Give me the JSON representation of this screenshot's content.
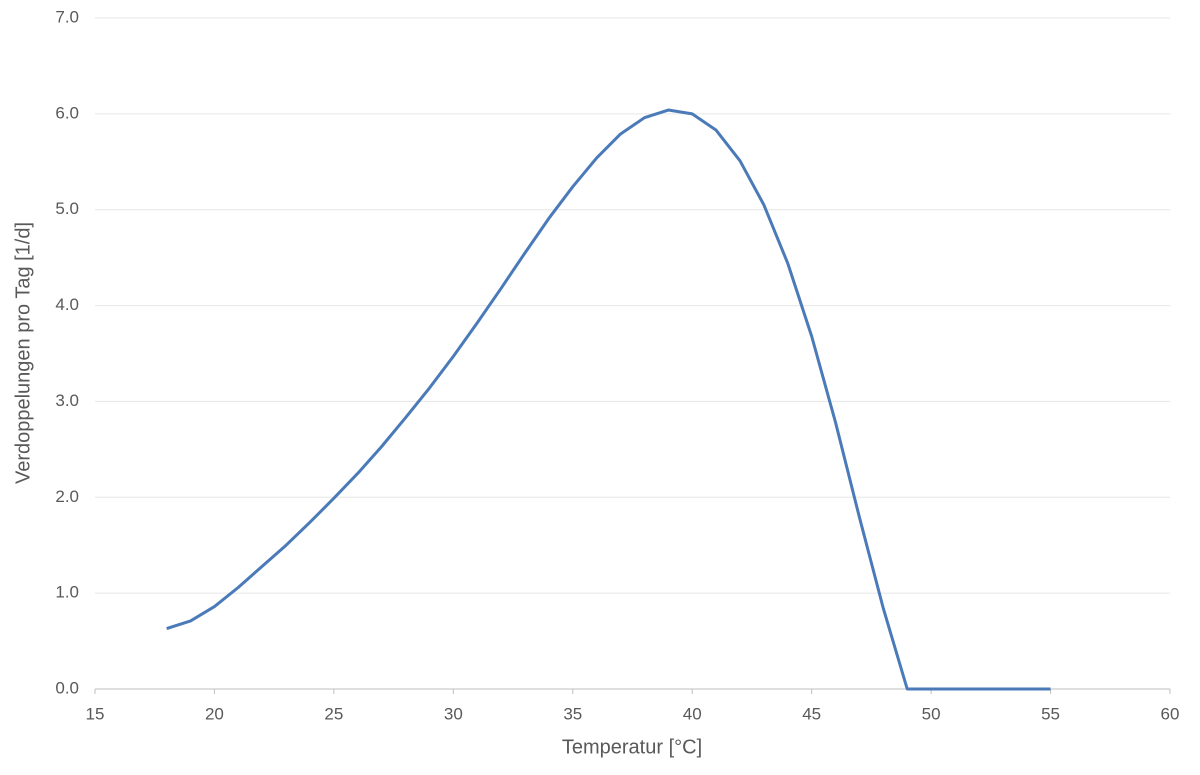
{
  "chart_data": {
    "type": "line",
    "x_label": "Temperatur [°C]",
    "y_label": "Verdoppelungen pro Tag [1/d]",
    "x": [
      18,
      19,
      20,
      21,
      22,
      23,
      24,
      25,
      26,
      27,
      28,
      29,
      30,
      31,
      32,
      33,
      34,
      35,
      36,
      37,
      38,
      39,
      40,
      41,
      42,
      43,
      44,
      45,
      46,
      47,
      48,
      49,
      50,
      51,
      52,
      53,
      54,
      55
    ],
    "series": [
      {
        "name": "Verdoppelungen pro Tag",
        "color": "#4a7ab8",
        "values": [
          0.63,
          0.71,
          0.86,
          1.06,
          1.28,
          1.5,
          1.74,
          1.99,
          2.25,
          2.53,
          2.83,
          3.14,
          3.47,
          3.82,
          4.18,
          4.55,
          4.91,
          5.24,
          5.54,
          5.79,
          5.96,
          6.04,
          6.0,
          5.83,
          5.51,
          5.05,
          4.44,
          3.68,
          2.78,
          1.79,
          0.84,
          0,
          0,
          0,
          0,
          0,
          0,
          0
        ]
      }
    ],
    "xlim": [
      15,
      60
    ],
    "xticks": [
      15,
      20,
      25,
      30,
      35,
      40,
      45,
      50,
      55,
      60
    ],
    "ylim": [
      0,
      7
    ],
    "yticks": [
      {
        "value": 0,
        "label": "0.0"
      },
      {
        "value": 1,
        "label": "1.0"
      },
      {
        "value": 2,
        "label": "2.0"
      },
      {
        "value": 3,
        "label": "3.0"
      },
      {
        "value": 4,
        "label": "4.0"
      },
      {
        "value": 5,
        "label": "5.0"
      },
      {
        "value": 6,
        "label": "6.0"
      },
      {
        "value": 7,
        "label": "7.0"
      }
    ],
    "grid": true
  }
}
